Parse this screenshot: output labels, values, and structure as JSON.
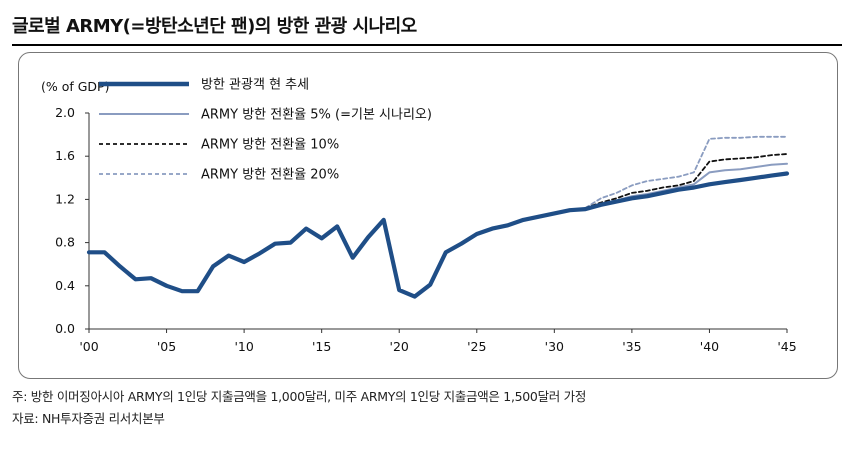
{
  "title": "글로벌 ARMY(=방탄소년단 팬)의 방한 관광 시나리오",
  "notes": {
    "line1": "주: 방한 이머징아시아 ARMY의 1인당 지출금액을 1,000달러, 미주 ARMY의 1인당 지출금액은 1,500달러 가정",
    "line2": "자료: NH투자증권 리서치본부"
  },
  "chart_data": {
    "type": "line",
    "ylabel": "(% of GDP)",
    "xlabel": "",
    "ylim": [
      0,
      2.0
    ],
    "yticks": [
      "0.0",
      "0.4",
      "0.8",
      "1.2",
      "1.6",
      "2.0"
    ],
    "xlim": [
      2000,
      2045
    ],
    "xticks": [
      {
        "value": 2000,
        "label": "'00"
      },
      {
        "value": 2005,
        "label": "'05"
      },
      {
        "value": 2010,
        "label": "'10"
      },
      {
        "value": 2015,
        "label": "'15"
      },
      {
        "value": 2020,
        "label": "'20"
      },
      {
        "value": 2025,
        "label": "'25"
      },
      {
        "value": 2030,
        "label": "'30"
      },
      {
        "value": 2035,
        "label": "'35"
      },
      {
        "value": 2040,
        "label": "'40"
      },
      {
        "value": 2045,
        "label": "'45"
      }
    ],
    "grid": false,
    "legend_position": "top-left",
    "series": [
      {
        "name": "ARMY 방한 전환율 20%",
        "color": "#8a9cc0",
        "style": "dashed",
        "x": [
          2032,
          2033,
          2034,
          2035,
          2036,
          2037,
          2038,
          2039,
          2040,
          2041,
          2042,
          2043,
          2044,
          2045
        ],
        "y": [
          1.12,
          1.21,
          1.26,
          1.33,
          1.37,
          1.39,
          1.41,
          1.45,
          1.76,
          1.77,
          1.77,
          1.78,
          1.78,
          1.78
        ]
      },
      {
        "name": "ARMY 방한 전환율 10%",
        "color": "#111111",
        "style": "dashed",
        "x": [
          2032,
          2033,
          2034,
          2035,
          2036,
          2037,
          2038,
          2039,
          2040,
          2041,
          2042,
          2043,
          2044,
          2045
        ],
        "y": [
          1.12,
          1.17,
          1.21,
          1.26,
          1.28,
          1.31,
          1.33,
          1.37,
          1.55,
          1.57,
          1.58,
          1.59,
          1.61,
          1.62
        ]
      },
      {
        "name": "ARMY 방한 전환율 5% (=기본 시나리오)",
        "color": "#8a9cc0",
        "style": "solid",
        "x": [
          2032,
          2033,
          2034,
          2035,
          2036,
          2037,
          2038,
          2039,
          2040,
          2041,
          2042,
          2043,
          2044,
          2045
        ],
        "y": [
          1.11,
          1.16,
          1.19,
          1.23,
          1.25,
          1.28,
          1.31,
          1.34,
          1.45,
          1.47,
          1.48,
          1.5,
          1.52,
          1.53
        ]
      },
      {
        "name": "방한 관광객 현 추세",
        "color": "#1f4e87",
        "style": "solid-thick",
        "x": [
          2000,
          2001,
          2002,
          2003,
          2004,
          2005,
          2006,
          2007,
          2008,
          2009,
          2010,
          2011,
          2012,
          2013,
          2014,
          2015,
          2016,
          2017,
          2018,
          2019,
          2020,
          2021,
          2022,
          2023,
          2024,
          2025,
          2026,
          2027,
          2028,
          2029,
          2030,
          2031,
          2032,
          2033,
          2034,
          2035,
          2036,
          2037,
          2038,
          2039,
          2040,
          2041,
          2042,
          2043,
          2044,
          2045
        ],
        "y": [
          0.71,
          0.71,
          0.58,
          0.46,
          0.47,
          0.4,
          0.35,
          0.35,
          0.58,
          0.68,
          0.62,
          0.7,
          0.79,
          0.8,
          0.93,
          0.84,
          0.95,
          0.66,
          0.85,
          1.01,
          0.36,
          0.3,
          0.41,
          0.71,
          0.79,
          0.88,
          0.93,
          0.96,
          1.01,
          1.04,
          1.07,
          1.1,
          1.11,
          1.15,
          1.18,
          1.21,
          1.23,
          1.26,
          1.29,
          1.31,
          1.34,
          1.36,
          1.38,
          1.4,
          1.42,
          1.44
        ]
      }
    ]
  }
}
